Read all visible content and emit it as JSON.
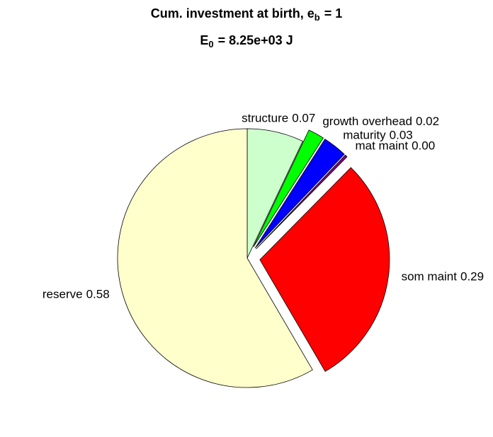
{
  "chart_data": {
    "type": "pie",
    "title": "Cum. investment at birth, e",
    "title_subscript": "b",
    "title_suffix": "= 1",
    "subtitle": "E",
    "subtitle_subscript": "0",
    "subtitle_suffix": "= 8.25e+03 J",
    "categories": [
      "structure",
      "growth overhead",
      "maturity",
      "mat maint",
      "som maint",
      "reserve"
    ],
    "values": [
      0.07,
      0.02,
      0.03,
      0.003,
      0.29,
      0.58
    ],
    "value_labels": [
      "0.07",
      "0.02",
      "0.03",
      "0.00",
      "0.29",
      "0.58"
    ],
    "colors": [
      "#ccffcc",
      "#00ff00",
      "#0000ff",
      "#800080",
      "#ff0000",
      "#ffffcc"
    ],
    "explode": [
      false,
      true,
      true,
      true,
      true,
      false
    ]
  }
}
